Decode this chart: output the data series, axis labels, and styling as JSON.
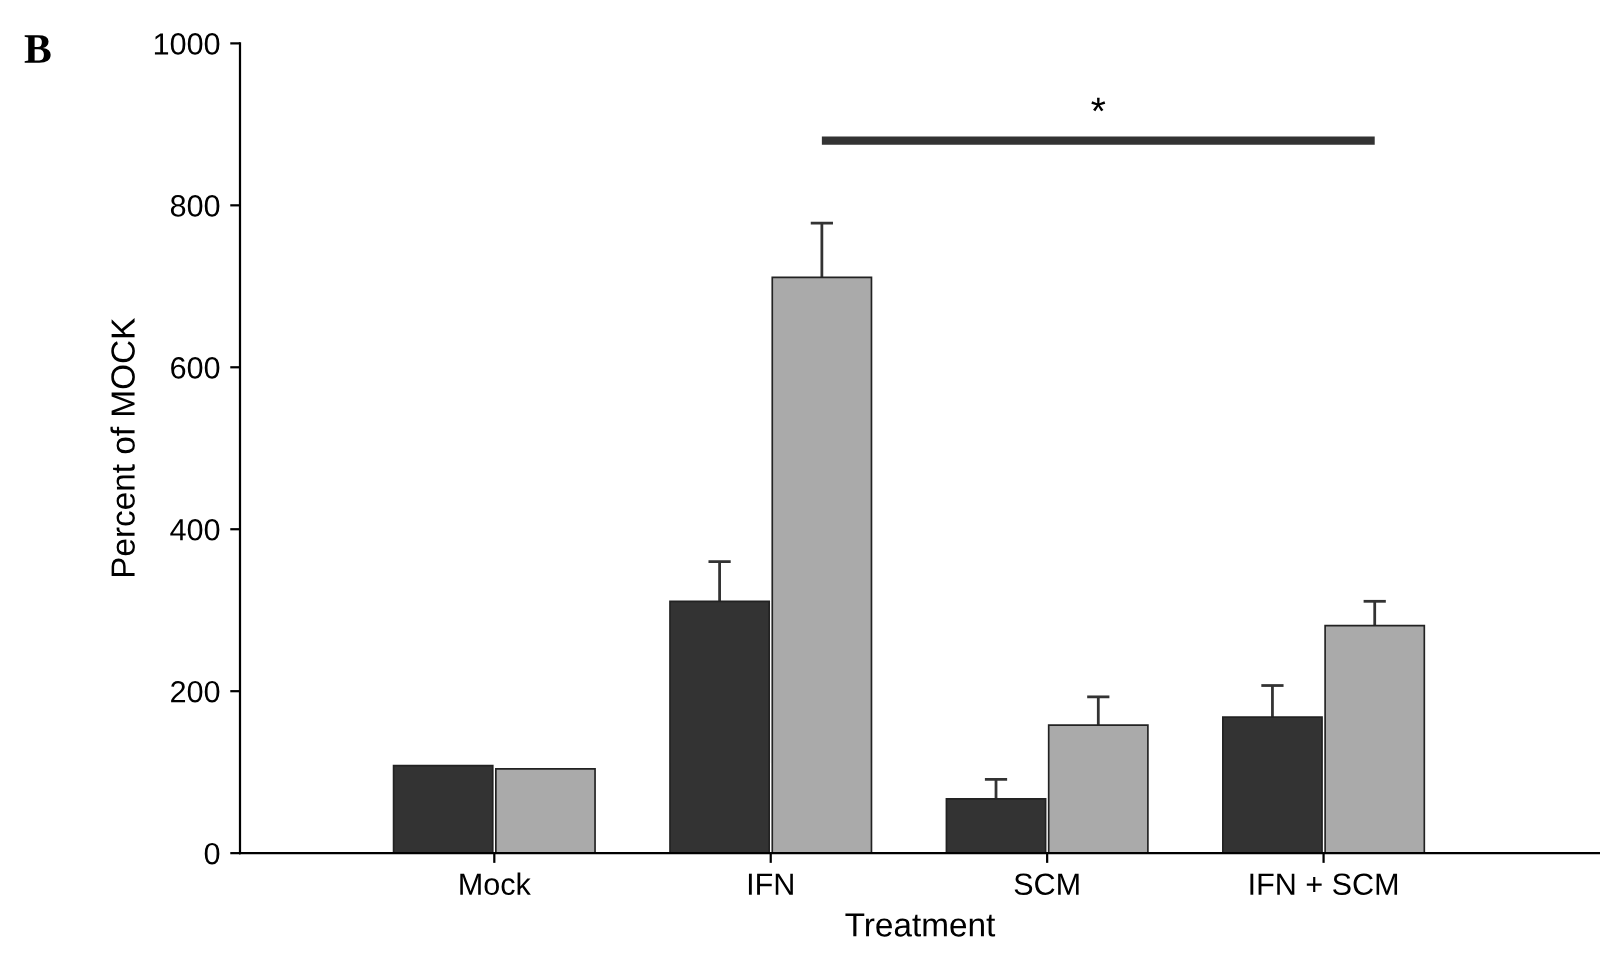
{
  "chart_data": {
    "type": "bar",
    "xlabel": "Treatment",
    "ylabel": "Percent of MOCK",
    "categories": [
      "Mock",
      "IFN",
      "SCM",
      "IFN + SCM"
    ],
    "series": [
      {
        "color": "#333333",
        "values": [
          108,
          311,
          67,
          168
        ],
        "errors": [
          null,
          49,
          24,
          39
        ]
      },
      {
        "color": "#aaaaaa",
        "values": [
          104,
          711,
          158,
          281
        ],
        "errors": [
          null,
          67,
          35,
          30
        ]
      }
    ],
    "ylim": [
      0,
      1000
    ],
    "yticks": [
      0,
      200,
      400,
      600,
      800,
      1000
    ],
    "grid": false,
    "legend": false,
    "annotations": [
      "B",
      "*"
    ]
  }
}
